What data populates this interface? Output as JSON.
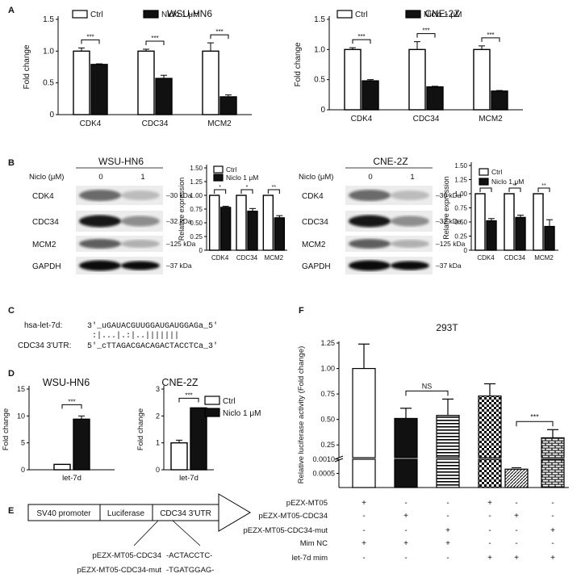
{
  "panels": {
    "A": "A",
    "B": "B",
    "C": "C",
    "D": "D",
    "E": "E",
    "F": "F"
  },
  "legend": {
    "ctrl": "Ctrl",
    "niclo": "Niclo 1 μM"
  },
  "blots": [
    {
      "cell": "WSU-HN6",
      "treatment_label": "Niclo (μM)",
      "lanes": [
        "0",
        "1"
      ],
      "bands": [
        {
          "name": "CDK4",
          "kda": "30 kDa"
        },
        {
          "name": "CDC34",
          "kda": "32 kDa"
        },
        {
          "name": "MCM2",
          "kda": "125 kDa"
        },
        {
          "name": "GAPDH",
          "kda": "37 kDa"
        }
      ]
    },
    {
      "cell": "CNE-2Z",
      "treatment_label": "Niclo (μM)",
      "lanes": [
        "0",
        "1"
      ],
      "bands": [
        {
          "name": "CDK4",
          "kda": "30 kDa"
        },
        {
          "name": "CDC34",
          "kda": "32 kDa"
        },
        {
          "name": "MCM2",
          "kda": "125 kDa"
        },
        {
          "name": "GAPDH",
          "kda": "37 kDa"
        }
      ]
    }
  ],
  "seq": {
    "mir_label": "hsa-let-7d:",
    "mir_seq": "3'_uGAUACGUUGGAUGAUGGAGa_5'",
    "pair": " :|...|.:|..||||||| ",
    "utr_label": "CDC34 3'UTR:",
    "utr_seq": "5'_cTTAGACGACAGACTACCTCa_3'"
  },
  "construct": {
    "parts": [
      "SV40 promoter",
      "Luciferase",
      "CDC34 3'UTR"
    ],
    "wt_label": "pEZX-MT05-CDC34",
    "wt_seq": "-ACTACCTC-",
    "mut_label": "pEZX-MT05-CDC34-mut",
    "mut_seq": "-TGATGGAG-"
  },
  "design_table": {
    "rows": [
      {
        "label": "pEZX-MT05",
        "marks": [
          "+",
          "-",
          "-",
          "+",
          "-",
          "-"
        ]
      },
      {
        "label": "pEZX-MT05-CDC34",
        "marks": [
          "-",
          "+",
          "-",
          "-",
          "+",
          "-"
        ]
      },
      {
        "label": "pEZX-MT05-CDC34-mut",
        "marks": [
          "-",
          "-",
          "+",
          "-",
          "-",
          "+"
        ]
      },
      {
        "label": "Mim NC",
        "marks": [
          "+",
          "+",
          "+",
          "-",
          "-",
          "-"
        ]
      },
      {
        "label": "let-7d mim",
        "marks": [
          "-",
          "-",
          "-",
          "+",
          "+",
          "+"
        ]
      }
    ]
  },
  "chart_data": [
    {
      "id": "A-left",
      "type": "bar",
      "title": "WSU-HN6",
      "ylabel": "Fold change",
      "categories": [
        "CDK4",
        "CDC34",
        "MCM2"
      ],
      "series": [
        {
          "name": "Ctrl",
          "values": [
            1.0,
            1.0,
            1.0
          ],
          "errors": [
            0.05,
            0.03,
            0.13
          ]
        },
        {
          "name": "Niclo 1 μM",
          "values": [
            0.79,
            0.57,
            0.28
          ],
          "errors": [
            0.01,
            0.05,
            0.03
          ]
        }
      ],
      "ylim": [
        0,
        1.5
      ],
      "yticks": [
        "0",
        "0.5",
        "1.0",
        "1.5"
      ],
      "significance": [
        "***",
        "***",
        "***"
      ]
    },
    {
      "id": "A-right",
      "type": "bar",
      "title": "CNE-2Z",
      "ylabel": "Fold change",
      "categories": [
        "CDK4",
        "CDC34",
        "MCM2"
      ],
      "series": [
        {
          "name": "Ctrl",
          "values": [
            1.0,
            1.0,
            1.0
          ],
          "errors": [
            0.03,
            0.13,
            0.06
          ]
        },
        {
          "name": "Niclo 1 μM",
          "values": [
            0.48,
            0.38,
            0.31
          ],
          "errors": [
            0.02,
            0.01,
            0.01
          ]
        }
      ],
      "ylim": [
        0,
        1.5
      ],
      "yticks": [
        "0",
        "0.5",
        "1.0",
        "1.5"
      ],
      "significance": [
        "***",
        "***",
        "***"
      ]
    },
    {
      "id": "B-left",
      "type": "bar",
      "ylabel": "Relative expression",
      "categories": [
        "CDK4",
        "CDC34",
        "MCM2"
      ],
      "series": [
        {
          "name": "Ctrl",
          "values": [
            1.0,
            1.0,
            1.0
          ],
          "errors": [
            0.0,
            0.0,
            0.0
          ]
        },
        {
          "name": "Niclo 1 μM",
          "values": [
            0.78,
            0.71,
            0.59
          ],
          "errors": [
            0.02,
            0.05,
            0.04
          ]
        }
      ],
      "ylim": [
        0,
        1.5
      ],
      "yticks": [
        "0",
        "0.25",
        "0.50",
        "0.75",
        "1.00",
        "1.25",
        "1.50"
      ],
      "significance": [
        "*",
        "*",
        "**"
      ]
    },
    {
      "id": "B-right",
      "type": "bar",
      "ylabel": "Relative expression",
      "categories": [
        "CDK4",
        "CDC34",
        "MCM2"
      ],
      "series": [
        {
          "name": "Ctrl",
          "values": [
            1.0,
            1.0,
            1.0
          ],
          "errors": [
            0.0,
            0.0,
            0.0
          ]
        },
        {
          "name": "Niclo 1 μM",
          "values": [
            0.52,
            0.58,
            0.42
          ],
          "errors": [
            0.04,
            0.04,
            0.12
          ]
        }
      ],
      "ylim": [
        0,
        1.5
      ],
      "yticks": [
        "0",
        "0.25",
        "0.50",
        "0.75",
        "1.00",
        "1.25",
        "1.50"
      ],
      "significance": [
        "**",
        "**",
        "**"
      ]
    },
    {
      "id": "D-left",
      "type": "bar",
      "title": "WSU-HN6",
      "ylabel": "Fold change",
      "categories": [
        "let-7d"
      ],
      "series": [
        {
          "name": "Ctrl",
          "values": [
            1.0
          ],
          "errors": [
            0.0
          ]
        },
        {
          "name": "Niclo 1 μM",
          "values": [
            9.4
          ],
          "errors": [
            0.6
          ]
        }
      ],
      "ylim": [
        0,
        15
      ],
      "yticks": [
        "0",
        "5",
        "10",
        "15"
      ],
      "significance": [
        "***"
      ]
    },
    {
      "id": "D-right",
      "type": "bar",
      "title": "CNE-2Z",
      "ylabel": "Fold change",
      "categories": [
        "let-7d"
      ],
      "series": [
        {
          "name": "Ctrl",
          "values": [
            1.0
          ],
          "errors": [
            0.1
          ]
        },
        {
          "name": "Niclo 1 μM",
          "values": [
            2.3
          ],
          "errors": [
            0.0
          ]
        }
      ],
      "ylim": [
        0,
        3
      ],
      "yticks": [
        "0",
        "1",
        "2",
        "3"
      ],
      "significance": [
        "***"
      ]
    },
    {
      "id": "F",
      "type": "bar",
      "title": "293T",
      "ylabel": "Relative luciferase activity (Fold change)",
      "categories": [
        "1",
        "2",
        "3",
        "4",
        "5",
        "6"
      ],
      "values": [
        1.0,
        0.51,
        0.54,
        0.73,
        0.00065,
        0.32
      ],
      "errors": [
        0.24,
        0.1,
        0.16,
        0.12,
        5e-05,
        0.08
      ],
      "patterns": [
        "open",
        "solid",
        "hstripe",
        "check",
        "diag",
        "brick"
      ],
      "ylim_upper": [
        0.125,
        1.25
      ],
      "yticks_upper": [
        "0.25",
        "0.50",
        "0.75",
        "1.00",
        "1.25"
      ],
      "ylim_lower": [
        0,
        0.001
      ],
      "yticks_lower": [
        "0.0005",
        "0.0010"
      ],
      "significance": [
        {
          "pair": [
            2,
            3
          ],
          "label": "NS"
        },
        {
          "pair": [
            5,
            6
          ],
          "label": "***"
        }
      ]
    }
  ]
}
